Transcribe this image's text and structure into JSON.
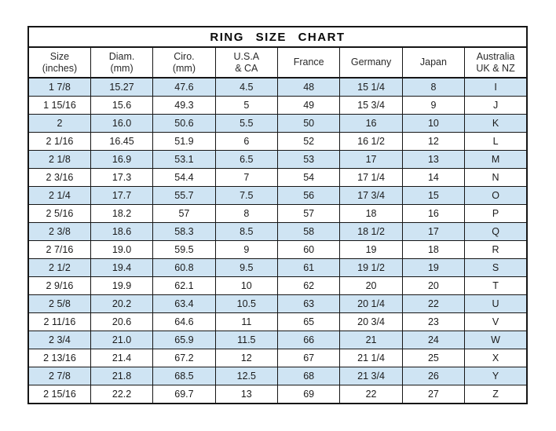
{
  "title": "RING SIZE CHART",
  "colors": {
    "row_alt_background": "#cfe4f3",
    "border": "#161616",
    "text": "#1b1b1b"
  },
  "table": {
    "headers": [
      {
        "line1": "Size",
        "line2": "(inches)"
      },
      {
        "line1": "Diam.",
        "line2": "(mm)"
      },
      {
        "line1": "Ciro.",
        "line2": "(mm)"
      },
      {
        "line1": "U.S.A",
        "line2": "& CA"
      },
      {
        "line1": "France",
        "line2": ""
      },
      {
        "line1": "Germany",
        "line2": ""
      },
      {
        "line1": "Japan",
        "line2": ""
      },
      {
        "line1": "Australia",
        "line2": "UK & NZ"
      }
    ],
    "rows": [
      [
        "1 7/8",
        "15.27",
        "47.6",
        "4.5",
        "48",
        "15 1/4",
        "8",
        "I"
      ],
      [
        "1 15/16",
        "15.6",
        "49.3",
        "5",
        "49",
        "15 3/4",
        "9",
        "J"
      ],
      [
        "2",
        "16.0",
        "50.6",
        "5.5",
        "50",
        "16",
        "10",
        "K"
      ],
      [
        "2 1/16",
        "16.45",
        "51.9",
        "6",
        "52",
        "16 1/2",
        "12",
        "L"
      ],
      [
        "2 1/8",
        "16.9",
        "53.1",
        "6.5",
        "53",
        "17",
        "13",
        "M"
      ],
      [
        "2 3/16",
        "17.3",
        "54.4",
        "7",
        "54",
        "17 1/4",
        "14",
        "N"
      ],
      [
        "2 1/4",
        "17.7",
        "55.7",
        "7.5",
        "56",
        "17 3/4",
        "15",
        "O"
      ],
      [
        "2 5/16",
        "18.2",
        "57",
        "8",
        "57",
        "18",
        "16",
        "P"
      ],
      [
        "2 3/8",
        "18.6",
        "58.3",
        "8.5",
        "58",
        "18 1/2",
        "17",
        "Q"
      ],
      [
        "2 7/16",
        "19.0",
        "59.5",
        "9",
        "60",
        "19",
        "18",
        "R"
      ],
      [
        "2 1/2",
        "19.4",
        "60.8",
        "9.5",
        "61",
        "19 1/2",
        "19",
        "S"
      ],
      [
        "2 9/16",
        "19.9",
        "62.1",
        "10",
        "62",
        "20",
        "20",
        "T"
      ],
      [
        "2 5/8",
        "20.2",
        "63.4",
        "10.5",
        "63",
        "20 1/4",
        "22",
        "U"
      ],
      [
        "2 11/16",
        "20.6",
        "64.6",
        "11",
        "65",
        "20 3/4",
        "23",
        "V"
      ],
      [
        "2 3/4",
        "21.0",
        "65.9",
        "11.5",
        "66",
        "21",
        "24",
        "W"
      ],
      [
        "2 13/16",
        "21.4",
        "67.2",
        "12",
        "67",
        "21 1/4",
        "25",
        "X"
      ],
      [
        "2 7/8",
        "21.8",
        "68.5",
        "12.5",
        "68",
        "21 3/4",
        "26",
        "Y"
      ],
      [
        "2 15/16",
        "22.2",
        "69.7",
        "13",
        "69",
        "22",
        "27",
        "Z"
      ]
    ]
  },
  "chart_data": {
    "type": "table",
    "title": "RING SIZE CHART",
    "columns": [
      "Size (inches)",
      "Diam. (mm)",
      "Ciro. (mm)",
      "U.S.A & CA",
      "France",
      "Germany",
      "Japan",
      "Australia UK & NZ"
    ],
    "rows": [
      [
        "1 7/8",
        "15.27",
        "47.6",
        "4.5",
        "48",
        "15 1/4",
        "8",
        "I"
      ],
      [
        "1 15/16",
        "15.6",
        "49.3",
        "5",
        "49",
        "15 3/4",
        "9",
        "J"
      ],
      [
        "2",
        "16.0",
        "50.6",
        "5.5",
        "50",
        "16",
        "10",
        "K"
      ],
      [
        "2 1/16",
        "16.45",
        "51.9",
        "6",
        "52",
        "16 1/2",
        "12",
        "L"
      ],
      [
        "2 1/8",
        "16.9",
        "53.1",
        "6.5",
        "53",
        "17",
        "13",
        "M"
      ],
      [
        "2 3/16",
        "17.3",
        "54.4",
        "7",
        "54",
        "17 1/4",
        "14",
        "N"
      ],
      [
        "2 1/4",
        "17.7",
        "55.7",
        "7.5",
        "56",
        "17 3/4",
        "15",
        "O"
      ],
      [
        "2 5/16",
        "18.2",
        "57",
        "8",
        "57",
        "18",
        "16",
        "P"
      ],
      [
        "2 3/8",
        "18.6",
        "58.3",
        "8.5",
        "58",
        "18 1/2",
        "17",
        "Q"
      ],
      [
        "2 7/16",
        "19.0",
        "59.5",
        "9",
        "60",
        "19",
        "18",
        "R"
      ],
      [
        "2 1/2",
        "19.4",
        "60.8",
        "9.5",
        "61",
        "19 1/2",
        "19",
        "S"
      ],
      [
        "2 9/16",
        "19.9",
        "62.1",
        "10",
        "62",
        "20",
        "20",
        "T"
      ],
      [
        "2 5/8",
        "20.2",
        "63.4",
        "10.5",
        "63",
        "20 1/4",
        "22",
        "U"
      ],
      [
        "2 11/16",
        "20.6",
        "64.6",
        "11",
        "65",
        "20 3/4",
        "23",
        "V"
      ],
      [
        "2 3/4",
        "21.0",
        "65.9",
        "11.5",
        "66",
        "21",
        "24",
        "W"
      ],
      [
        "2 13/16",
        "21.4",
        "67.2",
        "12",
        "67",
        "21 1/4",
        "25",
        "X"
      ],
      [
        "2 7/8",
        "21.8",
        "68.5",
        "12.5",
        "68",
        "21 3/4",
        "26",
        "Y"
      ],
      [
        "2 15/16",
        "22.2",
        "69.7",
        "13",
        "69",
        "22",
        "27",
        "Z"
      ]
    ]
  }
}
